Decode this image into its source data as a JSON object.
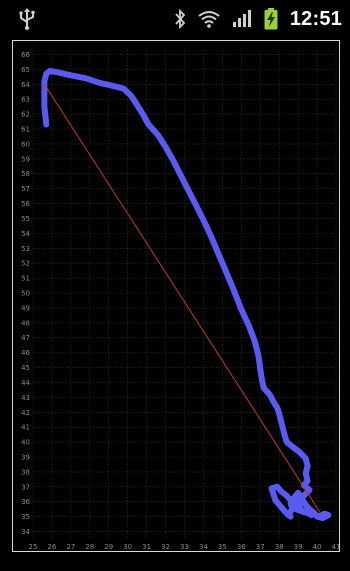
{
  "status_bar": {
    "time": "12:51",
    "icons": [
      "usb-icon",
      "bluetooth-icon",
      "wifi-icon",
      "signal-icon",
      "battery-charging-icon"
    ],
    "battery_color": "#9ad13a"
  },
  "chart_data": {
    "type": "line",
    "title": "",
    "xlabel": "",
    "ylabel": "",
    "xlim": [
      25,
      41
    ],
    "ylim": [
      33.5,
      66.5
    ],
    "x_ticks": [
      25,
      26,
      27,
      28,
      29,
      30,
      31,
      32,
      33,
      34,
      35,
      36,
      37,
      38,
      39,
      40,
      41
    ],
    "y_ticks": [
      34,
      35,
      36,
      37,
      38,
      39,
      40,
      41,
      42,
      43,
      44,
      45,
      46,
      47,
      48,
      49,
      50,
      51,
      52,
      53,
      54,
      55,
      56,
      57,
      58,
      59,
      60,
      61,
      62,
      63,
      64,
      65,
      66
    ],
    "grid": true,
    "series": [
      {
        "color": "#5a5af0",
        "points": [
          [
            25.7,
            61.3
          ],
          [
            25.6,
            62.5
          ],
          [
            25.6,
            63.5
          ],
          [
            25.6,
            64.2
          ],
          [
            25.7,
            64.7
          ],
          [
            25.9,
            64.9
          ],
          [
            26.3,
            64.8
          ],
          [
            27.0,
            64.6
          ],
          [
            27.8,
            64.4
          ],
          [
            28.5,
            64.1
          ],
          [
            29.2,
            63.9
          ],
          [
            29.8,
            63.7
          ],
          [
            30.2,
            63.2
          ],
          [
            30.5,
            62.6
          ],
          [
            30.8,
            62.0
          ],
          [
            31.1,
            61.3
          ],
          [
            31.6,
            60.6
          ],
          [
            32.0,
            59.8
          ],
          [
            32.4,
            58.9
          ],
          [
            32.8,
            57.9
          ],
          [
            33.2,
            56.9
          ],
          [
            33.6,
            55.9
          ],
          [
            34.0,
            54.9
          ],
          [
            34.4,
            53.8
          ],
          [
            34.8,
            52.6
          ],
          [
            35.2,
            51.4
          ],
          [
            35.6,
            50.2
          ],
          [
            36.0,
            48.9
          ],
          [
            36.4,
            47.8
          ],
          [
            36.7,
            46.8
          ],
          [
            36.9,
            45.8
          ],
          [
            37.0,
            44.9
          ],
          [
            37.1,
            44.1
          ],
          [
            37.2,
            43.6
          ],
          [
            37.5,
            43.2
          ],
          [
            37.7,
            42.7
          ],
          [
            37.9,
            42.3
          ],
          [
            38.0,
            41.9
          ],
          [
            38.1,
            41.4
          ],
          [
            38.2,
            40.9
          ],
          [
            38.3,
            40.4
          ],
          [
            38.4,
            40.0
          ],
          [
            38.8,
            39.6
          ],
          [
            39.1,
            39.3
          ],
          [
            39.4,
            38.9
          ],
          [
            39.5,
            38.4
          ],
          [
            39.4,
            37.9
          ],
          [
            39.5,
            37.4
          ],
          [
            39.3,
            37.1
          ],
          [
            39.6,
            36.8
          ],
          [
            39.3,
            36.4
          ],
          [
            39.0,
            36.1
          ],
          [
            39.1,
            35.7
          ],
          [
            38.9,
            35.5
          ],
          [
            39.3,
            35.3
          ],
          [
            39.6,
            35.4
          ],
          [
            39.8,
            35.2
          ],
          [
            40.1,
            35.0
          ],
          [
            40.4,
            35.2
          ],
          [
            40.6,
            35.1
          ],
          [
            40.3,
            34.9
          ],
          [
            40.0,
            35.0
          ],
          [
            39.8,
            35.3
          ],
          [
            39.6,
            35.5
          ],
          [
            39.4,
            35.8
          ],
          [
            39.2,
            36.2
          ],
          [
            39.0,
            36.6
          ],
          [
            38.8,
            36.3
          ],
          [
            38.6,
            35.9
          ],
          [
            38.7,
            35.5
          ],
          [
            38.5,
            35.2
          ],
          [
            38.6,
            35.0
          ],
          [
            38.4,
            35.2
          ],
          [
            38.2,
            35.5
          ],
          [
            38.0,
            35.8
          ],
          [
            37.8,
            36.1
          ],
          [
            37.7,
            36.5
          ],
          [
            37.6,
            36.9
          ],
          [
            37.9,
            37.0
          ],
          [
            38.1,
            36.7
          ],
          [
            38.4,
            36.4
          ],
          [
            38.6,
            36.1
          ],
          [
            38.8,
            35.8
          ],
          [
            39.1,
            35.5
          ],
          [
            39.4,
            35.3
          ],
          [
            39.7,
            35.1
          ]
        ]
      },
      {
        "color": "#c0392b",
        "points": [
          [
            25.6,
            64.0
          ],
          [
            40.2,
            35.2
          ]
        ]
      }
    ]
  }
}
